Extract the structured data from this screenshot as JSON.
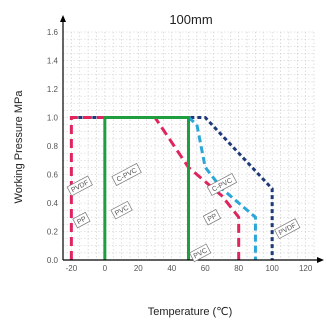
{
  "chart_data": {
    "type": "line",
    "title": "100mm",
    "xlabel": "Temperature (℃)",
    "ylabel": "Working Pressure MPa",
    "xlim": [
      -25,
      125
    ],
    "ylim": [
      0,
      1.6
    ],
    "x_ticks": [
      -20,
      0,
      20,
      40,
      60,
      80,
      100,
      120
    ],
    "y_ticks": [
      0.0,
      0.2,
      0.4,
      0.6,
      0.8,
      1.0,
      1.2,
      1.4,
      1.6
    ],
    "x_tick_labels": [
      "-20",
      "0",
      "20",
      "40",
      "60",
      "80",
      "100",
      "120"
    ],
    "y_tick_labels": [
      "0.0",
      "0.2",
      "0.4",
      "0.6",
      "0.8",
      "1.0",
      "1.2",
      "1.4",
      "1.6"
    ],
    "grid": true,
    "series": [
      {
        "name": "PP",
        "color": "#e0245e",
        "dash": "long",
        "points": [
          [
            -20,
            0
          ],
          [
            -20,
            1.0
          ],
          [
            30,
            1.0
          ],
          [
            50,
            0.65
          ],
          [
            70,
            0.45
          ],
          [
            80,
            0.3
          ],
          [
            80,
            0
          ]
        ]
      },
      {
        "name": "C-PVC",
        "color": "#2aa6d8",
        "dash": "medium",
        "points": [
          [
            50,
            1.0
          ],
          [
            55,
            0.95
          ],
          [
            60,
            0.65
          ],
          [
            70,
            0.5
          ],
          [
            80,
            0.4
          ],
          [
            90,
            0.3
          ],
          [
            90,
            0
          ]
        ]
      },
      {
        "name": "PVDF",
        "color": "#1f3a7a",
        "dash": "short",
        "points": [
          [
            -20,
            1.0
          ],
          [
            60,
            1.0
          ],
          [
            80,
            0.75
          ],
          [
            100,
            0.5
          ],
          [
            100,
            0
          ]
        ]
      },
      {
        "name": "PVC",
        "color": "#1e9e3e",
        "dash": "solid",
        "points": [
          [
            0,
            0
          ],
          [
            0,
            1.0
          ],
          [
            50,
            1.0
          ],
          [
            50,
            0
          ]
        ]
      }
    ],
    "tags": [
      {
        "text": "PVDF",
        "x": -15,
        "y": 0.52,
        "color": "#555555"
      },
      {
        "text": "PP",
        "x": -14,
        "y": 0.28,
        "color": "#555555"
      },
      {
        "text": "C-PVC",
        "x": 13,
        "y": 0.6,
        "color": "#555555"
      },
      {
        "text": "PVC",
        "x": 10,
        "y": 0.35,
        "color": "#555555"
      },
      {
        "text": "C-PVC",
        "x": 70,
        "y": 0.53,
        "color": "#555555"
      },
      {
        "text": "PP",
        "x": 64,
        "y": 0.3,
        "color": "#555555"
      },
      {
        "text": "PVC",
        "x": 57,
        "y": 0.05,
        "color": "#555555"
      },
      {
        "text": "PVDF",
        "x": 109,
        "y": 0.22,
        "color": "#555555"
      }
    ]
  }
}
